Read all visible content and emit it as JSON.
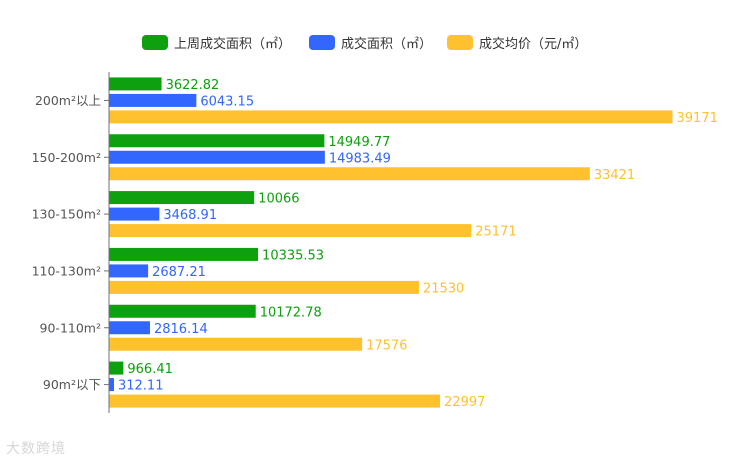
{
  "chart_data": {
    "type": "bar",
    "orientation": "horizontal",
    "categories": [
      "200m²以上",
      "150-200m²",
      "130-150m²",
      "110-130m²",
      "90-110m²",
      "90m²以下"
    ],
    "series": [
      {
        "name": "上周成交面积（㎡）",
        "color": "#0ea00e",
        "values": [
          3622.82,
          14949.77,
          10066,
          10335.53,
          10172.78,
          966.41
        ]
      },
      {
        "name": "成交面积（㎡）",
        "color": "#3366ff",
        "values": [
          6043.15,
          14983.49,
          3468.91,
          2687.21,
          2816.14,
          312.11
        ]
      },
      {
        "name": "成交均价（元/㎡）",
        "color": "#ffc12e",
        "values": [
          39171,
          33421,
          25171,
          21530,
          17576,
          22997
        ]
      }
    ],
    "xlim": [
      0,
      39171
    ],
    "grid": false,
    "legend_position": "top-center",
    "data_labels": true
  },
  "watermark": "大数跨境"
}
